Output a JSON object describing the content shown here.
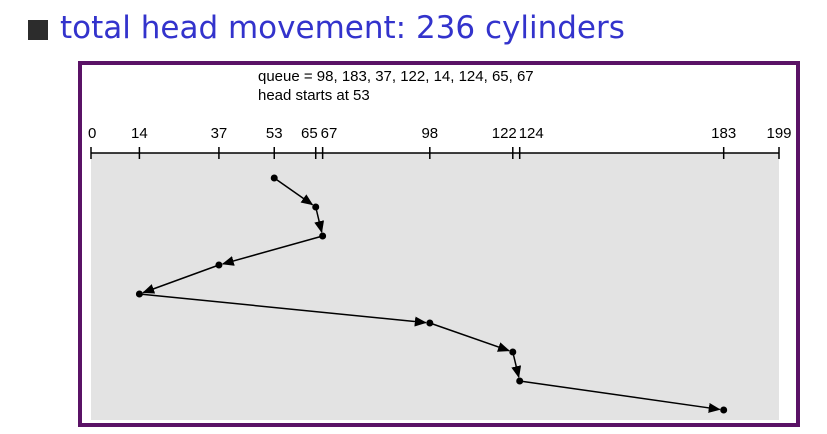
{
  "bullet": {
    "icon": "square-bullet-icon",
    "text": "total head movement: 236 cylinders",
    "color": "#3333cc"
  },
  "figure": {
    "border_color": "#5a1266",
    "plot_background": "#e3e3e3",
    "queue_line": "queue = 98, 183, 37, 122, 14, 124, 65, 67",
    "head_line": "head starts at 53"
  },
  "chart_data": {
    "type": "line",
    "title": "",
    "x_axis_range": [
      0,
      199
    ],
    "tick_labels": [
      "0",
      "14",
      "37",
      "53",
      "65",
      "67",
      "98",
      "122",
      "124",
      "183",
      "199"
    ],
    "ticks": [
      0,
      14,
      37,
      53,
      65,
      67,
      98,
      122,
      124,
      183,
      199
    ],
    "service_order": [
      53,
      65,
      67,
      37,
      14,
      98,
      122,
      124,
      183
    ],
    "total_head_movement": 236,
    "grid": false
  }
}
